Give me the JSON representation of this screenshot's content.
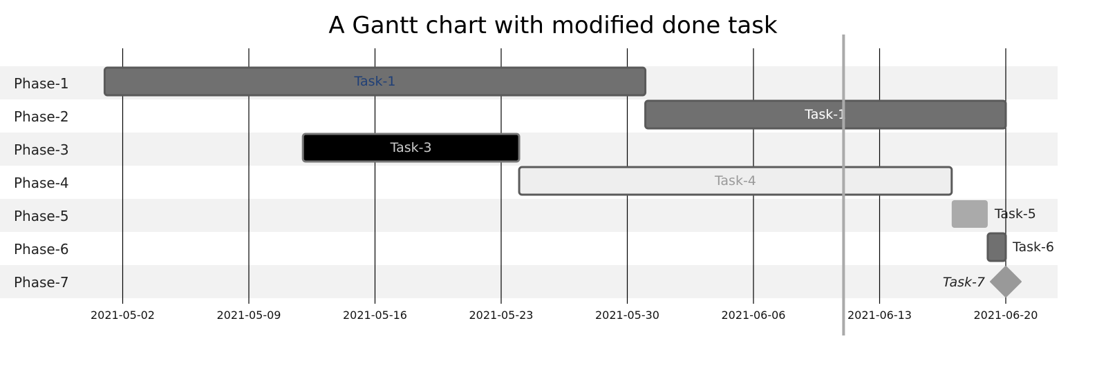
{
  "chart_data": {
    "type": "gantt",
    "title": "A Gantt chart with modified done task",
    "x_axis": {
      "type": "date",
      "range": [
        "2021-04-30",
        "2021-06-23"
      ],
      "tick_labels": [
        "2021-05-02",
        "2021-05-09",
        "2021-05-16",
        "2021-05-23",
        "2021-05-30",
        "2021-06-06",
        "2021-06-13",
        "2021-06-20"
      ],
      "grid": true
    },
    "today_marker": "2021-06-11",
    "categories": [
      "Phase-1",
      "Phase-2",
      "Phase-3",
      "Phase-4",
      "Phase-5",
      "Phase-6",
      "Phase-7"
    ],
    "tasks": [
      {
        "phase": "Phase-1",
        "label": "Task-1",
        "start": "2021-05-01",
        "end": "2021-05-31",
        "status": "done",
        "fill": "#707070",
        "stroke": "#5a5a5a",
        "label_color": "#1f3f77",
        "label_position": "inside"
      },
      {
        "phase": "Phase-2",
        "label": "Task-1",
        "start": "2021-05-31",
        "end": "2021-06-20",
        "status": "done",
        "fill": "#707070",
        "stroke": "#5a5a5a",
        "label_color": "#ffffff",
        "label_position": "inside"
      },
      {
        "phase": "Phase-3",
        "label": "Task-3",
        "start": "2021-05-12",
        "end": "2021-05-24",
        "status": "critical",
        "fill": "#000000",
        "stroke": "#777777",
        "label_color": "#cccccc",
        "label_position": "inside"
      },
      {
        "phase": "Phase-4",
        "label": "Task-4",
        "start": "2021-05-24",
        "end": "2021-06-17",
        "status": "active",
        "fill": "#eeeeee",
        "stroke": "#5a5a5a",
        "label_color": "#999999",
        "label_position": "inside"
      },
      {
        "phase": "Phase-5",
        "label": "Task-5",
        "start": "2021-06-17",
        "end": "2021-06-19",
        "status": "default",
        "fill": "#aaaaaa",
        "stroke": "#aaaaaa",
        "label_color": "#222222",
        "label_position": "right"
      },
      {
        "phase": "Phase-6",
        "label": "Task-6",
        "start": "2021-06-19",
        "end": "2021-06-20",
        "status": "done",
        "fill": "#707070",
        "stroke": "#5a5a5a",
        "label_color": "#222222",
        "label_position": "right"
      },
      {
        "phase": "Phase-7",
        "label": "Task-7",
        "start": "2021-06-20",
        "end": "2021-06-20",
        "status": "milestone",
        "fill": "#999999",
        "stroke": "#999999",
        "label_color": "#222222",
        "label_position": "left"
      }
    ]
  },
  "colors": {
    "band_odd": "#f2f2f2",
    "band_even": "#ffffff",
    "grid_line": "#000000",
    "today_line": "#aaaaaa"
  }
}
